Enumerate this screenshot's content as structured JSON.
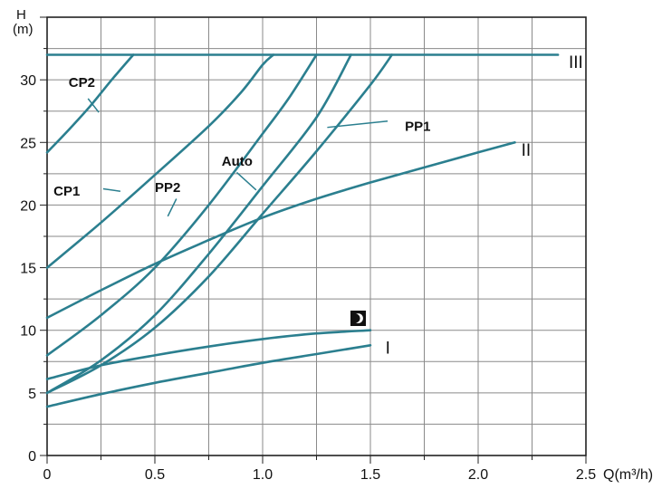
{
  "chart_data": {
    "type": "line",
    "xaxis": {
      "name": "Q(m³/h)",
      "range": [
        0,
        2.5
      ],
      "ticks": [
        0,
        0.5,
        1.0,
        1.5,
        2.0,
        2.5
      ],
      "tick_labels": [
        "0",
        "0.5",
        "1.0",
        "1.5",
        "2.0",
        "2.5"
      ]
    },
    "yaxis": {
      "name": "H",
      "unit": "(m)",
      "range": [
        0,
        35
      ],
      "ticks": [
        0,
        5,
        10,
        15,
        20,
        25,
        30
      ],
      "tick_labels": [
        "0",
        "5",
        "10",
        "15",
        "20",
        "25",
        "30"
      ]
    },
    "grid": true,
    "series": [
      {
        "name": "III",
        "points": [
          [
            0,
            32
          ],
          [
            0.5,
            32
          ],
          [
            1.0,
            32
          ],
          [
            1.5,
            32
          ],
          [
            2.0,
            32
          ],
          [
            2.37,
            32
          ]
        ]
      },
      {
        "name": "II",
        "points": [
          [
            0,
            11
          ],
          [
            0.25,
            13.2
          ],
          [
            0.5,
            15.3
          ],
          [
            0.75,
            17.2
          ],
          [
            1.0,
            19
          ],
          [
            1.25,
            20.5
          ],
          [
            1.5,
            21.8
          ],
          [
            1.75,
            23
          ],
          [
            2.0,
            24.2
          ],
          [
            2.17,
            25
          ]
        ]
      },
      {
        "name": "I",
        "points": [
          [
            0,
            3.9
          ],
          [
            0.25,
            4.9
          ],
          [
            0.5,
            5.8
          ],
          [
            0.75,
            6.6
          ],
          [
            1.0,
            7.4
          ],
          [
            1.25,
            8.1
          ],
          [
            1.5,
            8.8
          ]
        ]
      },
      {
        "name": "night",
        "points": [
          [
            0,
            6.1
          ],
          [
            0.25,
            7.2
          ],
          [
            0.5,
            8.0
          ],
          [
            0.75,
            8.7
          ],
          [
            1.0,
            9.3
          ],
          [
            1.25,
            9.75
          ],
          [
            1.5,
            10
          ]
        ]
      },
      {
        "name": "CP2",
        "points": [
          [
            0,
            24.2
          ],
          [
            0.1,
            26
          ],
          [
            0.2,
            27.9
          ],
          [
            0.3,
            30
          ],
          [
            0.4,
            32
          ]
        ]
      },
      {
        "name": "CP1",
        "points": [
          [
            0,
            15
          ],
          [
            0.25,
            18.6
          ],
          [
            0.5,
            22.4
          ],
          [
            0.75,
            26.3
          ],
          [
            0.9,
            29
          ],
          [
            1.0,
            31.2
          ],
          [
            1.05,
            32
          ]
        ]
      },
      {
        "name": "PP2",
        "points": [
          [
            0,
            8
          ],
          [
            0.25,
            11.2
          ],
          [
            0.5,
            15
          ],
          [
            0.75,
            20
          ],
          [
            1.0,
            25.7
          ],
          [
            1.12,
            28.5
          ],
          [
            1.25,
            32
          ]
        ]
      },
      {
        "name": "Auto",
        "points": [
          [
            0,
            5
          ],
          [
            0.25,
            7.6
          ],
          [
            0.5,
            11.2
          ],
          [
            0.75,
            16.1
          ],
          [
            1.0,
            21.5
          ],
          [
            1.25,
            27
          ],
          [
            1.41,
            32
          ]
        ]
      },
      {
        "name": "PP1",
        "points": [
          [
            0,
            5
          ],
          [
            0.25,
            7.2
          ],
          [
            0.5,
            10.2
          ],
          [
            0.75,
            14.3
          ],
          [
            1.0,
            19.3
          ],
          [
            1.25,
            24.3
          ],
          [
            1.5,
            29.6
          ],
          [
            1.6,
            32
          ]
        ]
      }
    ],
    "labels": [
      {
        "text": "III",
        "series": "III",
        "at": [
          2.42,
          31.3
        ]
      },
      {
        "text": "II",
        "series": "II",
        "at": [
          2.2,
          24.3
        ]
      },
      {
        "text": "I",
        "series": "I",
        "at": [
          1.57,
          8.5
        ]
      },
      {
        "text": "CP2",
        "series": "CP2",
        "at": [
          0.1,
          29.8
        ],
        "leader": [
          [
            0.19,
            28.5
          ],
          [
            0.24,
            27.4
          ]
        ]
      },
      {
        "text": "CP1",
        "series": "CP1",
        "at": [
          0.03,
          21.1
        ],
        "leader": [
          [
            0.26,
            21.3
          ],
          [
            0.34,
            21.1
          ]
        ]
      },
      {
        "text": "PP2",
        "series": "PP2",
        "at": [
          0.5,
          21.4
        ],
        "leader": [
          [
            0.6,
            20.5
          ],
          [
            0.56,
            19.1
          ]
        ]
      },
      {
        "text": "Auto",
        "series": "Auto",
        "at": [
          0.81,
          23.5
        ],
        "leader": [
          [
            0.88,
            22.6
          ],
          [
            0.97,
            21.2
          ]
        ]
      },
      {
        "text": "PP1",
        "series": "PP1",
        "at": [
          1.66,
          26.3
        ],
        "leader": [
          [
            1.58,
            26.7
          ],
          [
            1.3,
            26.2
          ]
        ]
      }
    ]
  }
}
